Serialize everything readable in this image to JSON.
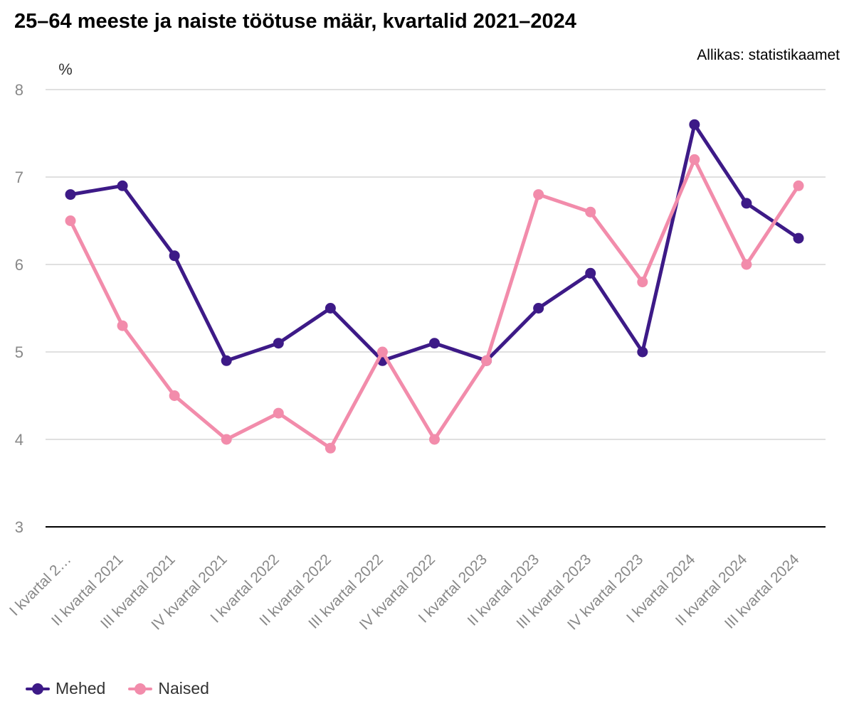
{
  "title": "25–64 meeste ja naiste töötuse määr, kvartalid 2021–2024",
  "source": "Allikas: statistikaamet",
  "chart_data": {
    "type": "line",
    "ylabel": "%",
    "ylim": [
      3,
      8
    ],
    "yticks": [
      "3",
      "4",
      "5",
      "6",
      "7",
      "8"
    ],
    "grid": true,
    "legend": "bottom-left",
    "categories": [
      "I kvartal 2…",
      "II kvartal 2021",
      "III kvartal 2021",
      "IV kvartal 2021",
      "I kvartal 2022",
      "II kvartal 2022",
      "III kvartal 2022",
      "IV kvartal 2022",
      "I kvartal 2023",
      "II kvartal 2023",
      "III kvartal 2023",
      "IV kvartal 2023",
      "I kvartal 2024",
      "II kvartal 2024",
      "III kvartal 2024"
    ],
    "series": [
      {
        "name": "Mehed",
        "color": "#3d1a87",
        "values": [
          6.8,
          6.9,
          6.1,
          4.9,
          5.1,
          5.5,
          4.9,
          5.1,
          4.9,
          5.5,
          5.9,
          5.0,
          7.6,
          6.7,
          6.3
        ]
      },
      {
        "name": "Naised",
        "color": "#f28cab",
        "values": [
          6.5,
          5.3,
          4.5,
          4.0,
          4.3,
          3.9,
          5.0,
          4.0,
          4.9,
          6.8,
          6.6,
          5.8,
          7.2,
          6.0,
          6.9
        ]
      }
    ]
  }
}
